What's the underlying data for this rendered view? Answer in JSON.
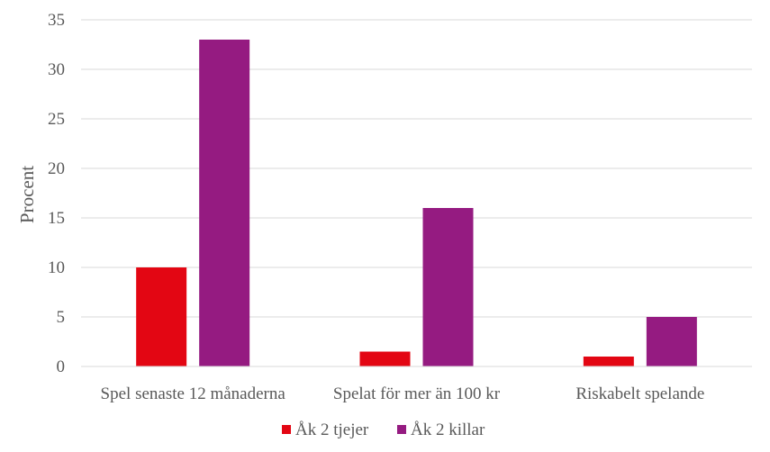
{
  "chart_data": {
    "type": "bar",
    "categories": [
      "Spel senaste 12 månaderna",
      "Spelat för mer än 100 kr",
      "Riskabelt spelande"
    ],
    "series": [
      {
        "name": "Åk 2 tjejer",
        "values": [
          10,
          1.5,
          1
        ],
        "color": "#e30613"
      },
      {
        "name": "Åk 2 killar",
        "values": [
          33,
          16,
          5
        ],
        "color": "#951b81"
      }
    ],
    "ylabel": "Procent",
    "ylim": [
      0,
      35
    ],
    "yticks": [
      0,
      5,
      10,
      15,
      20,
      25,
      30,
      35
    ],
    "grid": true,
    "legend_position": "bottom"
  }
}
